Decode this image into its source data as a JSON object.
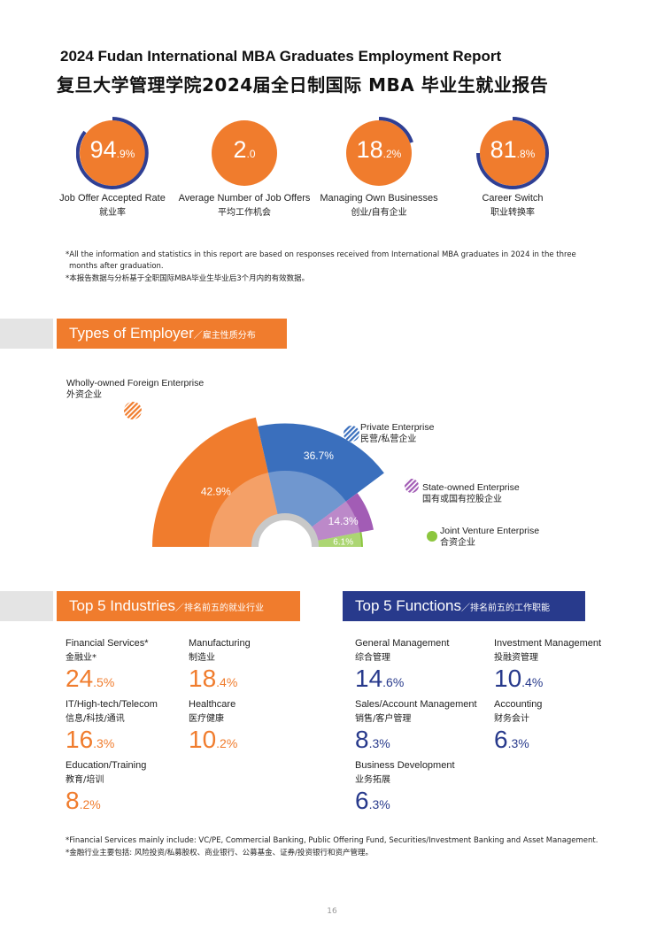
{
  "header": {
    "title_en": "2024 Fudan International MBA Graduates Employment Report",
    "title_cn": "复旦大学管理学院2024届全日制国际 MBA 毕业生就业报告"
  },
  "stats": [
    {
      "int": "94",
      "dec": ".9%",
      "value": 94.9,
      "label_en": "Job Offer Accepted Rate",
      "label_cn": "就业率"
    },
    {
      "int": "2",
      "dec": ".0",
      "value": 2.0,
      "label_en": "Average Number of Job Offers",
      "label_cn": "平均工作机会"
    },
    {
      "int": "18",
      "dec": ".2%",
      "value": 18.2,
      "label_en": "Managing Own Businesses",
      "label_cn": "创业/自有企业"
    },
    {
      "int": "81",
      "dec": ".8%",
      "value": 81.8,
      "label_en": "Career Switch",
      "label_cn": "职业转换率"
    }
  ],
  "notes": {
    "line1": "*All the information and statistics in this report are based on responses received from International MBA graduates in 2024 in the three",
    "line2": "months after graduation.",
    "line3": "*本报告数据与分析基于全职国际MBA毕业生毕业后3个月内的有效数据。"
  },
  "employer_section": {
    "title_en": "Types of Employer",
    "title_cn": "／雇主性质分布"
  },
  "chart_data": {
    "type": "pie",
    "title": "",
    "categories": [
      "Wholly-owned Foreign Enterprise",
      "Private Enterprise",
      "State-owned Enterprise",
      "Joint Venture Enterprise"
    ],
    "categories_cn": [
      "外资企业",
      "民营/私营企业",
      "国有或国有控股企业",
      "合资企业"
    ],
    "values": [
      42.9,
      36.7,
      14.3,
      6.1
    ],
    "value_labels": [
      "42.9%",
      "36.7%",
      "14.3%",
      "6.1%"
    ],
    "colors": [
      "#f07c2d",
      "#3a6fbd",
      "#a25cb5",
      "#8cc63e"
    ],
    "legend": "inline"
  },
  "industries_section": {
    "title_en": "Top 5 Industries",
    "title_cn": "／排名前五的就业行业"
  },
  "industries": [
    {
      "en": "Financial Services*",
      "cn": "金融业*",
      "int": "24",
      "dec": ".5%"
    },
    {
      "en": "Manufacturing",
      "cn": "制造业",
      "int": "18",
      "dec": ".4%"
    },
    {
      "en": "IT/High-tech/Telecom",
      "cn": "信息/科技/通讯",
      "int": "16",
      "dec": ".3%"
    },
    {
      "en": "Healthcare",
      "cn": "医疗健康",
      "int": "10",
      "dec": ".2%"
    },
    {
      "en": "Education/Training",
      "cn": "教育/培训",
      "int": "8",
      "dec": ".2%"
    }
  ],
  "functions_section": {
    "title_en": "Top 5 Functions",
    "title_cn": "／排名前五的工作职能"
  },
  "functions": [
    {
      "en": "General Management",
      "cn": "综合管理",
      "int": "14",
      "dec": ".6%"
    },
    {
      "en": "Investment Management",
      "cn": "投融资管理",
      "int": "10",
      "dec": ".4%"
    },
    {
      "en": "Sales/Account Management",
      "cn": "销售/客户管理",
      "int": "8",
      "dec": ".3%"
    },
    {
      "en": "Accounting",
      "cn": "财务会计",
      "int": "6",
      "dec": ".3%"
    },
    {
      "en": "Business Development",
      "cn": "业务拓展",
      "int": "6",
      "dec": ".3%"
    }
  ],
  "footnotes": {
    "line1": "*Financial Services mainly include: VC/PE, Commercial Banking, Public Offering Fund, Securities/Investment Banking and Asset Management.",
    "line2": "*金融行业主要包括: 风险投资/私募股权、商业银行、公募基金、证券/投资银行和资产管理。"
  },
  "page_number": "16"
}
